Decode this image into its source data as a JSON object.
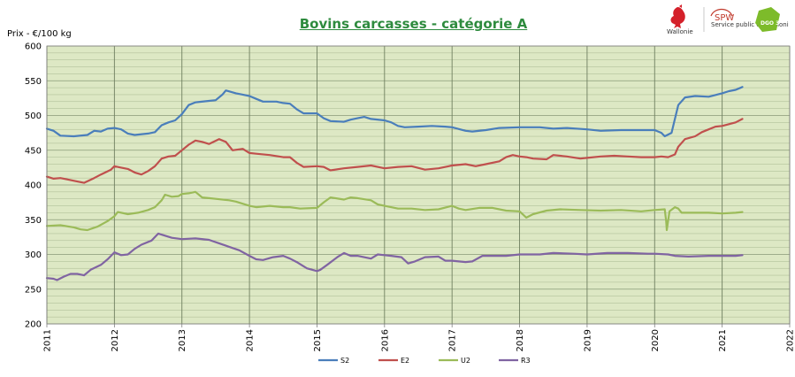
{
  "header": {
    "logos": [
      {
        "name": "wallonie-rooster-logo",
        "text": "Wallonie",
        "color": "#d4202a"
      },
      {
        "name": "spw-logo",
        "text": "SPW",
        "subtext": "Service public de Wallonie",
        "color": "#c0392b"
      },
      {
        "name": "dgo3-logo",
        "text": "DGO 3",
        "color": "#7dbb2a"
      }
    ]
  },
  "chart_data": {
    "type": "line",
    "title": "Bovins carcasses - catégorie A",
    "ylabel": "Prix - €/100 kg",
    "xlabel": "",
    "xlim": [
      2011,
      2022
    ],
    "ylim": [
      200,
      600
    ],
    "yticks": [
      200,
      250,
      300,
      350,
      400,
      450,
      500,
      550,
      600
    ],
    "xticks": [
      "2011",
      "2012",
      "2013",
      "2014",
      "2015",
      "2016",
      "2017",
      "2018",
      "2019",
      "2020",
      "2021",
      "2022"
    ],
    "grid": true,
    "background": "#dde8c4",
    "legend": "bottom",
    "series": [
      {
        "name": "S2",
        "color": "#4a7ebb",
        "points": [
          [
            2011.0,
            481
          ],
          [
            2011.1,
            478
          ],
          [
            2011.2,
            471
          ],
          [
            2011.4,
            470
          ],
          [
            2011.6,
            472
          ],
          [
            2011.7,
            478
          ],
          [
            2011.8,
            477
          ],
          [
            2011.9,
            481
          ],
          [
            2012.0,
            482
          ],
          [
            2012.1,
            480
          ],
          [
            2012.2,
            474
          ],
          [
            2012.3,
            472
          ],
          [
            2012.5,
            474
          ],
          [
            2012.6,
            476
          ],
          [
            2012.7,
            486
          ],
          [
            2012.8,
            490
          ],
          [
            2012.9,
            493
          ],
          [
            2013.0,
            502
          ],
          [
            2013.1,
            515
          ],
          [
            2013.2,
            519
          ],
          [
            2013.4,
            521
          ],
          [
            2013.5,
            522
          ],
          [
            2013.6,
            530
          ],
          [
            2013.65,
            536
          ],
          [
            2013.8,
            532
          ],
          [
            2013.9,
            530
          ],
          [
            2014.0,
            528
          ],
          [
            2014.1,
            524
          ],
          [
            2014.2,
            520
          ],
          [
            2014.4,
            520
          ],
          [
            2014.5,
            518
          ],
          [
            2014.6,
            517
          ],
          [
            2014.7,
            509
          ],
          [
            2014.8,
            503
          ],
          [
            2015.0,
            503
          ],
          [
            2015.1,
            496
          ],
          [
            2015.2,
            492
          ],
          [
            2015.4,
            491
          ],
          [
            2015.5,
            494
          ],
          [
            2015.6,
            496
          ],
          [
            2015.7,
            498
          ],
          [
            2015.8,
            495
          ],
          [
            2016.0,
            493
          ],
          [
            2016.1,
            490
          ],
          [
            2016.2,
            485
          ],
          [
            2016.3,
            483
          ],
          [
            2016.5,
            484
          ],
          [
            2016.7,
            485
          ],
          [
            2016.9,
            484
          ],
          [
            2017.0,
            483
          ],
          [
            2017.2,
            478
          ],
          [
            2017.3,
            477
          ],
          [
            2017.5,
            479
          ],
          [
            2017.7,
            482
          ],
          [
            2018.0,
            483
          ],
          [
            2018.3,
            483
          ],
          [
            2018.5,
            481
          ],
          [
            2018.7,
            482
          ],
          [
            2019.0,
            480
          ],
          [
            2019.2,
            478
          ],
          [
            2019.5,
            479
          ],
          [
            2019.8,
            479
          ],
          [
            2020.0,
            479
          ],
          [
            2020.1,
            475
          ],
          [
            2020.15,
            470
          ],
          [
            2020.25,
            475
          ],
          [
            2020.3,
            495
          ],
          [
            2020.35,
            515
          ],
          [
            2020.45,
            526
          ],
          [
            2020.6,
            528
          ],
          [
            2020.8,
            527
          ],
          [
            2021.0,
            532
          ],
          [
            2021.1,
            535
          ],
          [
            2021.2,
            537
          ],
          [
            2021.3,
            541
          ]
        ]
      },
      {
        "name": "E2",
        "color": "#c0504d",
        "points": [
          [
            2011.0,
            412
          ],
          [
            2011.1,
            409
          ],
          [
            2011.2,
            410
          ],
          [
            2011.3,
            408
          ],
          [
            2011.45,
            405
          ],
          [
            2011.55,
            403
          ],
          [
            2011.7,
            410
          ],
          [
            2011.8,
            415
          ],
          [
            2011.95,
            422
          ],
          [
            2012.0,
            427
          ],
          [
            2012.1,
            425
          ],
          [
            2012.2,
            423
          ],
          [
            2012.3,
            418
          ],
          [
            2012.4,
            415
          ],
          [
            2012.5,
            420
          ],
          [
            2012.6,
            427
          ],
          [
            2012.7,
            438
          ],
          [
            2012.8,
            441
          ],
          [
            2012.9,
            442
          ],
          [
            2013.0,
            450
          ],
          [
            2013.1,
            458
          ],
          [
            2013.2,
            464
          ],
          [
            2013.3,
            462
          ],
          [
            2013.4,
            459
          ],
          [
            2013.55,
            466
          ],
          [
            2013.65,
            462
          ],
          [
            2013.75,
            450
          ],
          [
            2013.9,
            452
          ],
          [
            2014.0,
            446
          ],
          [
            2014.1,
            445
          ],
          [
            2014.3,
            443
          ],
          [
            2014.5,
            440
          ],
          [
            2014.6,
            440
          ],
          [
            2014.7,
            432
          ],
          [
            2014.8,
            426
          ],
          [
            2015.0,
            427
          ],
          [
            2015.1,
            426
          ],
          [
            2015.2,
            421
          ],
          [
            2015.4,
            424
          ],
          [
            2015.6,
            426
          ],
          [
            2015.8,
            428
          ],
          [
            2016.0,
            424
          ],
          [
            2016.2,
            426
          ],
          [
            2016.4,
            427
          ],
          [
            2016.6,
            422
          ],
          [
            2016.8,
            424
          ],
          [
            2017.0,
            428
          ],
          [
            2017.2,
            430
          ],
          [
            2017.35,
            427
          ],
          [
            2017.5,
            430
          ],
          [
            2017.7,
            434
          ],
          [
            2017.8,
            440
          ],
          [
            2017.9,
            443
          ],
          [
            2018.0,
            441
          ],
          [
            2018.1,
            440
          ],
          [
            2018.2,
            438
          ],
          [
            2018.4,
            437
          ],
          [
            2018.5,
            443
          ],
          [
            2018.7,
            441
          ],
          [
            2018.9,
            438
          ],
          [
            2019.0,
            439
          ],
          [
            2019.2,
            441
          ],
          [
            2019.4,
            442
          ],
          [
            2019.6,
            441
          ],
          [
            2019.8,
            440
          ],
          [
            2020.0,
            440
          ],
          [
            2020.1,
            441
          ],
          [
            2020.2,
            440
          ],
          [
            2020.3,
            444
          ],
          [
            2020.35,
            455
          ],
          [
            2020.45,
            466
          ],
          [
            2020.6,
            470
          ],
          [
            2020.7,
            476
          ],
          [
            2020.8,
            480
          ],
          [
            2020.9,
            484
          ],
          [
            2021.0,
            485
          ],
          [
            2021.2,
            490
          ],
          [
            2021.3,
            495
          ]
        ]
      },
      {
        "name": "U2",
        "color": "#9bbb59",
        "points": [
          [
            2011.0,
            341
          ],
          [
            2011.2,
            342
          ],
          [
            2011.4,
            339
          ],
          [
            2011.5,
            336
          ],
          [
            2011.6,
            335
          ],
          [
            2011.75,
            340
          ],
          [
            2011.9,
            348
          ],
          [
            2012.0,
            355
          ],
          [
            2012.05,
            361
          ],
          [
            2012.2,
            358
          ],
          [
            2012.35,
            360
          ],
          [
            2012.5,
            364
          ],
          [
            2012.6,
            368
          ],
          [
            2012.7,
            378
          ],
          [
            2012.75,
            386
          ],
          [
            2012.85,
            383
          ],
          [
            2012.95,
            384
          ],
          [
            2013.0,
            387
          ],
          [
            2013.1,
            388
          ],
          [
            2013.2,
            390
          ],
          [
            2013.3,
            382
          ],
          [
            2013.4,
            381
          ],
          [
            2013.5,
            380
          ],
          [
            2013.7,
            378
          ],
          [
            2013.8,
            376
          ],
          [
            2014.0,
            370
          ],
          [
            2014.1,
            368
          ],
          [
            2014.3,
            370
          ],
          [
            2014.5,
            368
          ],
          [
            2014.6,
            368
          ],
          [
            2014.75,
            366
          ],
          [
            2015.0,
            367
          ],
          [
            2015.1,
            375
          ],
          [
            2015.2,
            382
          ],
          [
            2015.4,
            379
          ],
          [
            2015.5,
            382
          ],
          [
            2015.6,
            381
          ],
          [
            2015.8,
            378
          ],
          [
            2015.9,
            372
          ],
          [
            2016.0,
            370
          ],
          [
            2016.2,
            366
          ],
          [
            2016.4,
            366
          ],
          [
            2016.6,
            364
          ],
          [
            2016.8,
            365
          ],
          [
            2017.0,
            370
          ],
          [
            2017.1,
            366
          ],
          [
            2017.2,
            364
          ],
          [
            2017.4,
            367
          ],
          [
            2017.6,
            367
          ],
          [
            2017.8,
            363
          ],
          [
            2018.0,
            362
          ],
          [
            2018.1,
            353
          ],
          [
            2018.2,
            358
          ],
          [
            2018.4,
            363
          ],
          [
            2018.6,
            365
          ],
          [
            2018.9,
            364
          ],
          [
            2019.2,
            363
          ],
          [
            2019.5,
            364
          ],
          [
            2019.8,
            362
          ],
          [
            2020.0,
            364
          ],
          [
            2020.15,
            365
          ],
          [
            2020.17,
            348
          ],
          [
            2020.18,
            335
          ],
          [
            2020.22,
            362
          ],
          [
            2020.3,
            368
          ],
          [
            2020.35,
            366
          ],
          [
            2020.4,
            360
          ],
          [
            2020.6,
            360
          ],
          [
            2020.8,
            360
          ],
          [
            2021.0,
            359
          ],
          [
            2021.2,
            360
          ],
          [
            2021.3,
            361
          ]
        ]
      },
      {
        "name": "R3",
        "color": "#8064a2",
        "points": [
          [
            2011.0,
            266
          ],
          [
            2011.1,
            265
          ],
          [
            2011.15,
            263
          ],
          [
            2011.25,
            268
          ],
          [
            2011.35,
            272
          ],
          [
            2011.45,
            272
          ],
          [
            2011.55,
            270
          ],
          [
            2011.65,
            278
          ],
          [
            2011.8,
            285
          ],
          [
            2011.9,
            293
          ],
          [
            2012.0,
            303
          ],
          [
            2012.1,
            299
          ],
          [
            2012.2,
            300
          ],
          [
            2012.3,
            308
          ],
          [
            2012.4,
            314
          ],
          [
            2012.55,
            320
          ],
          [
            2012.65,
            330
          ],
          [
            2012.75,
            327
          ],
          [
            2012.85,
            324
          ],
          [
            2013.0,
            322
          ],
          [
            2013.2,
            323
          ],
          [
            2013.4,
            321
          ],
          [
            2013.55,
            316
          ],
          [
            2013.7,
            311
          ],
          [
            2013.85,
            306
          ],
          [
            2014.0,
            298
          ],
          [
            2014.1,
            293
          ],
          [
            2014.2,
            292
          ],
          [
            2014.35,
            296
          ],
          [
            2014.5,
            298
          ],
          [
            2014.6,
            294
          ],
          [
            2014.7,
            289
          ],
          [
            2014.85,
            280
          ],
          [
            2015.0,
            276
          ],
          [
            2015.05,
            278
          ],
          [
            2015.15,
            285
          ],
          [
            2015.3,
            296
          ],
          [
            2015.4,
            302
          ],
          [
            2015.5,
            298
          ],
          [
            2015.6,
            298
          ],
          [
            2015.8,
            294
          ],
          [
            2015.9,
            300
          ],
          [
            2016.0,
            299
          ],
          [
            2016.1,
            298
          ],
          [
            2016.25,
            296
          ],
          [
            2016.35,
            287
          ],
          [
            2016.45,
            290
          ],
          [
            2016.6,
            296
          ],
          [
            2016.8,
            297
          ],
          [
            2016.9,
            291
          ],
          [
            2017.0,
            291
          ],
          [
            2017.2,
            289
          ],
          [
            2017.3,
            290
          ],
          [
            2017.45,
            298
          ],
          [
            2017.6,
            298
          ],
          [
            2017.8,
            298
          ],
          [
            2018.0,
            300
          ],
          [
            2018.3,
            300
          ],
          [
            2018.5,
            302
          ],
          [
            2018.8,
            301
          ],
          [
            2019.0,
            300
          ],
          [
            2019.3,
            302
          ],
          [
            2019.6,
            302
          ],
          [
            2019.9,
            301
          ],
          [
            2020.0,
            301
          ],
          [
            2020.2,
            300
          ],
          [
            2020.3,
            298
          ],
          [
            2020.5,
            297
          ],
          [
            2020.8,
            298
          ],
          [
            2021.0,
            298
          ],
          [
            2021.2,
            298
          ],
          [
            2021.3,
            299
          ]
        ]
      }
    ]
  }
}
